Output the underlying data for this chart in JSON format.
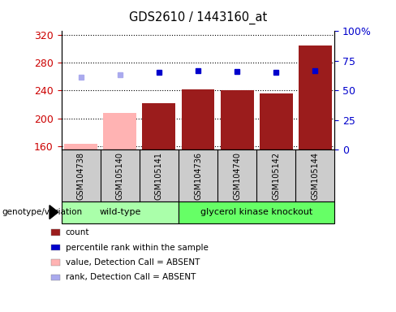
{
  "title": "GDS2610 / 1443160_at",
  "samples": [
    "GSM104738",
    "GSM105140",
    "GSM105141",
    "GSM104736",
    "GSM104740",
    "GSM105142",
    "GSM105144"
  ],
  "count_values": [
    163,
    208,
    222,
    242,
    241,
    236,
    305
  ],
  "absent_mask": [
    true,
    true,
    false,
    false,
    false,
    false,
    false
  ],
  "percentile_rank": [
    61,
    63,
    65,
    67,
    66,
    65,
    67
  ],
  "ylim_left": [
    155,
    325
  ],
  "ylim_right": [
    0,
    100
  ],
  "yticks_left": [
    160,
    200,
    240,
    280,
    320
  ],
  "yticks_right": [
    0,
    25,
    50,
    75,
    100
  ],
  "bar_color_normal": "#9B1C1C",
  "bar_color_absent": "#FFB3B3",
  "dot_color_normal": "#0000CC",
  "dot_color_absent": "#AAAAEE",
  "group1_label": "wild-type",
  "group2_label": "glycerol kinase knockout",
  "group1_count": 3,
  "group2_count": 4,
  "group_color1": "#AAFFAA",
  "group_color2": "#66FF66",
  "tick_bg_color": "#CCCCCC",
  "xlabel_row": "genotype/variation",
  "legend_items": [
    {
      "label": "count",
      "color": "#9B1C1C"
    },
    {
      "label": "percentile rank within the sample",
      "color": "#0000CC"
    },
    {
      "label": "value, Detection Call = ABSENT",
      "color": "#FFB3B3"
    },
    {
      "label": "rank, Detection Call = ABSENT",
      "color": "#AAAAEE"
    }
  ],
  "plot_bg_color": "#FFFFFF",
  "left_tick_color": "#CC0000",
  "right_tick_color": "#0000CC"
}
